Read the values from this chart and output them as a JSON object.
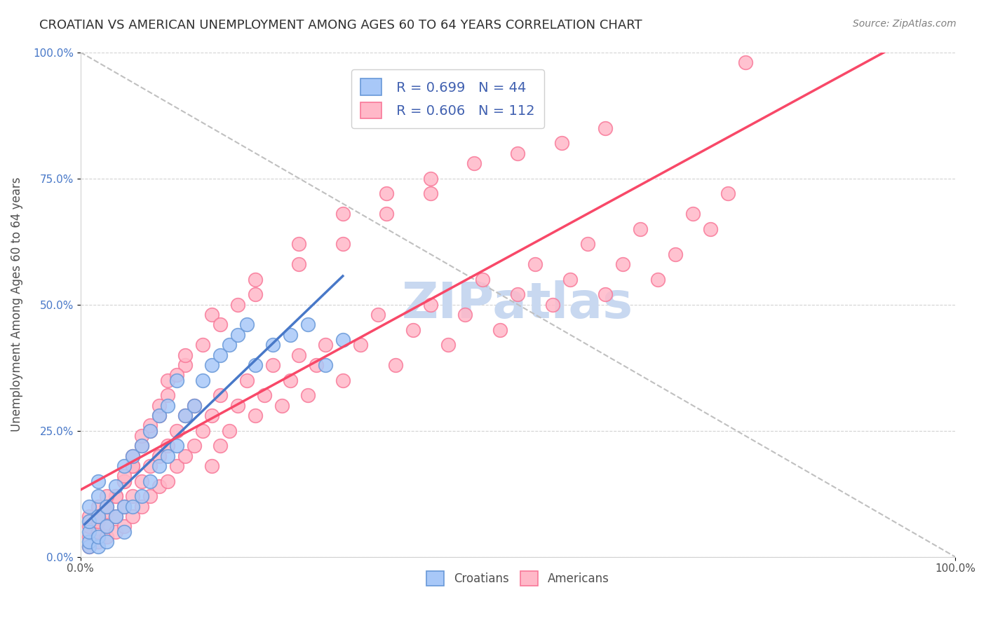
{
  "title": "CROATIAN VS AMERICAN UNEMPLOYMENT AMONG AGES 60 TO 64 YEARS CORRELATION CHART",
  "source": "Source: ZipAtlas.com",
  "xlabel": "",
  "ylabel": "Unemployment Among Ages 60 to 64 years",
  "xlim": [
    0,
    1
  ],
  "ylim": [
    0,
    1
  ],
  "xtick_labels": [
    "0.0%",
    "100.0%"
  ],
  "ytick_labels": [
    "0.0%",
    "25.0%",
    "50.0%",
    "75.0%",
    "100.0%"
  ],
  "ytick_values": [
    0.0,
    0.25,
    0.5,
    0.75,
    1.0
  ],
  "watermark": "ZIPatlas",
  "watermark_color": "#c8d8f0",
  "legend_r_croatians": "R = 0.699",
  "legend_n_croatians": "N = 44",
  "legend_r_americans": "R = 0.606",
  "legend_n_americans": "N = 112",
  "croatian_color": "#a8c8f8",
  "croatian_edge": "#6898d8",
  "american_color": "#ffb8c8",
  "american_edge": "#f87898",
  "trendline_croatian": "#4878c8",
  "trendline_american": "#f84868",
  "diagonal_color": "#c0c0c0",
  "title_color": "#303030",
  "title_fontsize": 13,
  "axis_label_color": "#505050",
  "background_color": "#ffffff",
  "grid_color": "#e0e0e0",
  "croatians_x": [
    0.01,
    0.01,
    0.01,
    0.01,
    0.01,
    0.02,
    0.02,
    0.02,
    0.02,
    0.02,
    0.03,
    0.03,
    0.03,
    0.04,
    0.04,
    0.05,
    0.05,
    0.05,
    0.06,
    0.06,
    0.07,
    0.07,
    0.08,
    0.08,
    0.09,
    0.09,
    0.1,
    0.1,
    0.11,
    0.11,
    0.12,
    0.13,
    0.14,
    0.15,
    0.16,
    0.17,
    0.18,
    0.19,
    0.2,
    0.22,
    0.24,
    0.26,
    0.28,
    0.3
  ],
  "croatians_y": [
    0.02,
    0.03,
    0.05,
    0.07,
    0.1,
    0.02,
    0.04,
    0.08,
    0.12,
    0.15,
    0.03,
    0.06,
    0.1,
    0.08,
    0.14,
    0.05,
    0.1,
    0.18,
    0.1,
    0.2,
    0.12,
    0.22,
    0.15,
    0.25,
    0.18,
    0.28,
    0.2,
    0.3,
    0.22,
    0.35,
    0.28,
    0.3,
    0.35,
    0.38,
    0.4,
    0.42,
    0.44,
    0.46,
    0.38,
    0.42,
    0.44,
    0.46,
    0.38,
    0.43
  ],
  "americans_x": [
    0.01,
    0.01,
    0.01,
    0.01,
    0.02,
    0.02,
    0.02,
    0.02,
    0.03,
    0.03,
    0.03,
    0.04,
    0.04,
    0.04,
    0.05,
    0.05,
    0.05,
    0.06,
    0.06,
    0.06,
    0.07,
    0.07,
    0.08,
    0.08,
    0.09,
    0.09,
    0.1,
    0.1,
    0.11,
    0.11,
    0.12,
    0.12,
    0.13,
    0.13,
    0.14,
    0.15,
    0.15,
    0.16,
    0.16,
    0.17,
    0.18,
    0.19,
    0.2,
    0.21,
    0.22,
    0.23,
    0.24,
    0.25,
    0.26,
    0.27,
    0.28,
    0.3,
    0.32,
    0.34,
    0.36,
    0.38,
    0.4,
    0.42,
    0.44,
    0.46,
    0.48,
    0.5,
    0.52,
    0.54,
    0.56,
    0.58,
    0.6,
    0.62,
    0.64,
    0.66,
    0.68,
    0.7,
    0.72,
    0.74,
    0.76,
    0.2,
    0.25,
    0.3,
    0.35,
    0.4,
    0.45,
    0.5,
    0.55,
    0.6,
    0.15,
    0.2,
    0.25,
    0.3,
    0.35,
    0.4,
    0.1,
    0.12,
    0.14,
    0.16,
    0.18,
    0.08,
    0.09,
    0.1,
    0.11,
    0.12,
    0.05,
    0.06,
    0.07,
    0.08,
    0.09,
    0.03,
    0.04,
    0.05,
    0.06,
    0.07,
    0.02,
    0.03
  ],
  "americans_y": [
    0.02,
    0.04,
    0.06,
    0.08,
    0.03,
    0.05,
    0.07,
    0.1,
    0.04,
    0.06,
    0.09,
    0.05,
    0.08,
    0.12,
    0.06,
    0.1,
    0.15,
    0.08,
    0.12,
    0.18,
    0.1,
    0.15,
    0.12,
    0.18,
    0.14,
    0.2,
    0.15,
    0.22,
    0.18,
    0.25,
    0.2,
    0.28,
    0.22,
    0.3,
    0.25,
    0.18,
    0.28,
    0.22,
    0.32,
    0.25,
    0.3,
    0.35,
    0.28,
    0.32,
    0.38,
    0.3,
    0.35,
    0.4,
    0.32,
    0.38,
    0.42,
    0.35,
    0.42,
    0.48,
    0.38,
    0.45,
    0.5,
    0.42,
    0.48,
    0.55,
    0.45,
    0.52,
    0.58,
    0.5,
    0.55,
    0.62,
    0.52,
    0.58,
    0.65,
    0.55,
    0.6,
    0.68,
    0.65,
    0.72,
    0.98,
    0.55,
    0.62,
    0.68,
    0.72,
    0.75,
    0.78,
    0.8,
    0.82,
    0.85,
    0.48,
    0.52,
    0.58,
    0.62,
    0.68,
    0.72,
    0.35,
    0.38,
    0.42,
    0.46,
    0.5,
    0.25,
    0.28,
    0.32,
    0.36,
    0.4,
    0.15,
    0.18,
    0.22,
    0.26,
    0.3,
    0.1,
    0.12,
    0.16,
    0.2,
    0.24,
    0.08,
    0.12
  ]
}
